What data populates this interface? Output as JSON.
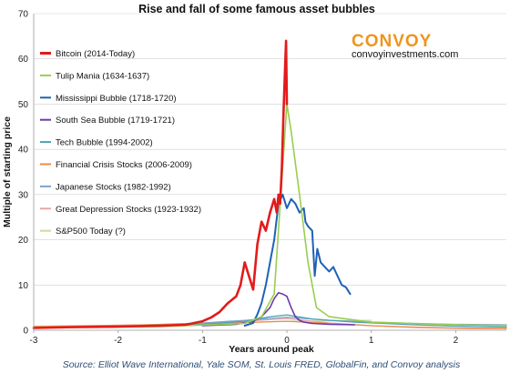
{
  "chart_data": {
    "type": "line",
    "title": "Rise and fall of some famous asset bubbles",
    "xlabel": "Years around peak",
    "ylabel": "Multiple of starting price",
    "xlim": [
      -3,
      2.6
    ],
    "ylim": [
      0,
      70
    ],
    "xticks": [
      "-3",
      "-2",
      "-1",
      "0",
      "1",
      "2"
    ],
    "yticks": [
      "0",
      "10",
      "20",
      "30",
      "40",
      "50",
      "60",
      "70"
    ],
    "grid": "horizontal",
    "legend_position": "left",
    "brand": {
      "name": "CONVOY",
      "url": "convoyinvestments.com"
    },
    "source": "Source: Elliot Wave International, Yale SOM, St. Louis FRED, GlobalFin, and Convoy analysis",
    "series": [
      {
        "name": "Bitcoin (2014-Today)",
        "color": "#e31b1b",
        "width": 2.6,
        "x": [
          -3,
          -2.5,
          -2,
          -1.5,
          -1.2,
          -1,
          -0.9,
          -0.8,
          -0.7,
          -0.6,
          -0.55,
          -0.5,
          -0.45,
          -0.4,
          -0.35,
          -0.3,
          -0.25,
          -0.2,
          -0.15,
          -0.12,
          -0.1,
          -0.08,
          -0.06,
          -0.04,
          -0.02,
          -0.01,
          0
        ],
        "y": [
          0.5,
          0.7,
          0.8,
          1.0,
          1.2,
          2.0,
          2.8,
          4.0,
          6.0,
          7.5,
          10,
          15,
          12,
          9,
          19,
          24,
          22,
          26,
          29,
          26,
          30,
          28,
          36,
          48,
          59,
          64,
          50
        ]
      },
      {
        "name": "Tulip Mania (1634-1637)",
        "color": "#9acd50",
        "width": 1.6,
        "x": [
          -3,
          -1.5,
          -0.5,
          -0.3,
          -0.15,
          0,
          0.05,
          0.15,
          0.25,
          0.35,
          0.5,
          1.0,
          2.0,
          2.6
        ],
        "y": [
          0.5,
          0.8,
          1.5,
          3.0,
          8.0,
          50,
          44,
          30,
          15,
          5,
          3,
          1.8,
          1.2,
          1.0
        ]
      },
      {
        "name": "Mississippi Bubble (1718-1720)",
        "color": "#1f62b5",
        "width": 2.0,
        "x": [
          -0.5,
          -0.4,
          -0.35,
          -0.3,
          -0.25,
          -0.2,
          -0.15,
          -0.1,
          -0.05,
          0,
          0.05,
          0.1,
          0.15,
          0.2,
          0.22,
          0.25,
          0.3,
          0.33,
          0.36,
          0.4,
          0.45,
          0.5,
          0.55,
          0.6,
          0.65,
          0.7,
          0.75
        ],
        "y": [
          1.0,
          1.6,
          3.5,
          6.0,
          10,
          15,
          20,
          28,
          30,
          27,
          29,
          28,
          26,
          27,
          24,
          23,
          22,
          12,
          18,
          15,
          14,
          13,
          14,
          12,
          10,
          9.5,
          8
        ]
      },
      {
        "name": "South Sea Bubble (1719-1721)",
        "color": "#6b3aa8",
        "width": 1.6,
        "x": [
          -1.0,
          -0.6,
          -0.4,
          -0.3,
          -0.2,
          -0.15,
          -0.1,
          -0.05,
          0,
          0.05,
          0.1,
          0.15,
          0.2,
          0.3,
          0.5,
          0.8
        ],
        "y": [
          1.0,
          1.3,
          2.0,
          3.0,
          5.0,
          7.0,
          8.3,
          8.0,
          7.5,
          5.0,
          3.0,
          2.2,
          1.8,
          1.5,
          1.3,
          1.2
        ]
      },
      {
        "name": "Tech Bubble (1994-2002)",
        "color": "#4aa3b5",
        "width": 1.3,
        "x": [
          -3,
          -2,
          -1,
          -0.5,
          -0.2,
          0,
          0.3,
          0.8,
          1.5,
          2.0,
          2.6
        ],
        "y": [
          0.6,
          0.8,
          1.3,
          2.0,
          3.0,
          3.4,
          2.5,
          1.8,
          1.2,
          0.9,
          0.7
        ]
      },
      {
        "name": "Financial Crisis Stocks (2006-2009)",
        "color": "#ee8a4a",
        "width": 1.3,
        "x": [
          -3,
          -2,
          -1,
          -0.5,
          0,
          0.5,
          1.0,
          1.5,
          2.0,
          2.6
        ],
        "y": [
          0.8,
          1.1,
          1.4,
          1.7,
          2.0,
          1.5,
          1.0,
          0.7,
          0.5,
          0.4
        ]
      },
      {
        "name": "Japanese Stocks (1982-1992)",
        "color": "#7fa3cc",
        "width": 1.3,
        "x": [
          -3,
          -2,
          -1,
          -0.5,
          0,
          0.5,
          1.0,
          1.5,
          2.0,
          2.6
        ],
        "y": [
          0.7,
          1.0,
          1.6,
          2.2,
          2.9,
          2.2,
          1.8,
          1.5,
          1.3,
          1.2
        ]
      },
      {
        "name": "Great Depression Stocks (1923-1932)",
        "color": "#e6a6a8",
        "width": 1.3,
        "x": [
          -3,
          -2,
          -1,
          -0.5,
          0,
          0.5,
          1.0,
          1.5,
          2.0,
          2.6
        ],
        "y": [
          0.6,
          0.9,
          1.5,
          2.0,
          2.6,
          1.6,
          1.0,
          0.6,
          0.4,
          0.3
        ]
      },
      {
        "name": "S&P500 Today (?)",
        "color": "#c8dda0",
        "width": 1.3,
        "x": [
          -3,
          -2,
          -1,
          -0.5,
          0,
          0.5,
          1.0
        ],
        "y": [
          0.9,
          1.1,
          1.4,
          1.7,
          2.0,
          2.1,
          2.2
        ]
      }
    ]
  }
}
